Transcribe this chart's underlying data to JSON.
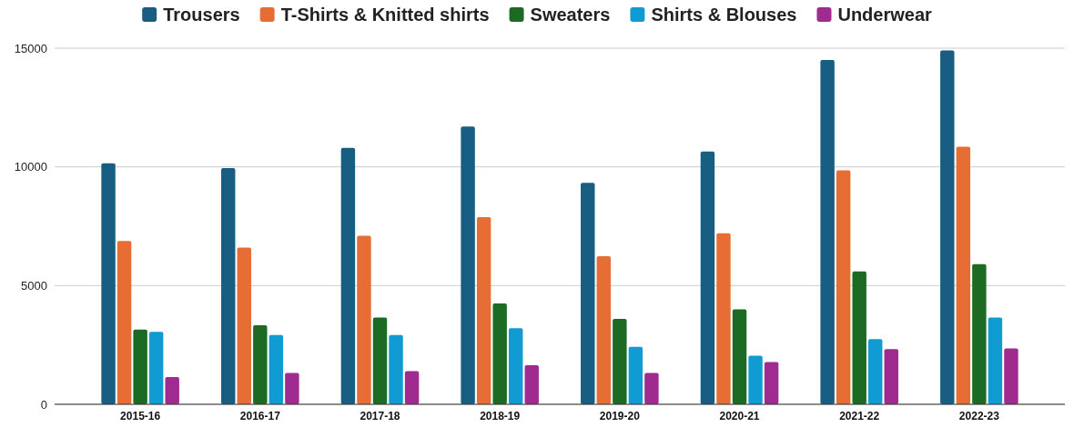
{
  "chart_data": {
    "type": "bar",
    "categories": [
      "2015-16",
      "2016-17",
      "2017-18",
      "2018-19",
      "2019-20",
      "2020-21",
      "2021-22",
      "2022-23"
    ],
    "series": [
      {
        "name": "Trousers",
        "color": "#175e82",
        "values": [
          10150,
          9950,
          10800,
          11700,
          9330,
          10650,
          14500,
          14900
        ]
      },
      {
        "name": "T-Shirts & Knitted shirts",
        "color": "#e66e34",
        "values": [
          6880,
          6600,
          7100,
          7880,
          6240,
          7200,
          9850,
          10850
        ]
      },
      {
        "name": "Sweaters",
        "color": "#1c6a23",
        "values": [
          3150,
          3330,
          3650,
          4250,
          3600,
          4000,
          5600,
          5900
        ]
      },
      {
        "name": "Shirts & Blouses",
        "color": "#119bd3",
        "values": [
          3050,
          2920,
          2920,
          3200,
          2420,
          2050,
          2750,
          3650
        ]
      },
      {
        "name": "Underwear",
        "color": "#a02b90",
        "values": [
          1150,
          1320,
          1400,
          1650,
          1320,
          1780,
          2320,
          2350
        ]
      }
    ],
    "ylim": [
      0,
      15000
    ],
    "yticks": [
      0,
      5000,
      10000,
      15000
    ],
    "grid": "y",
    "legend": "top"
  }
}
